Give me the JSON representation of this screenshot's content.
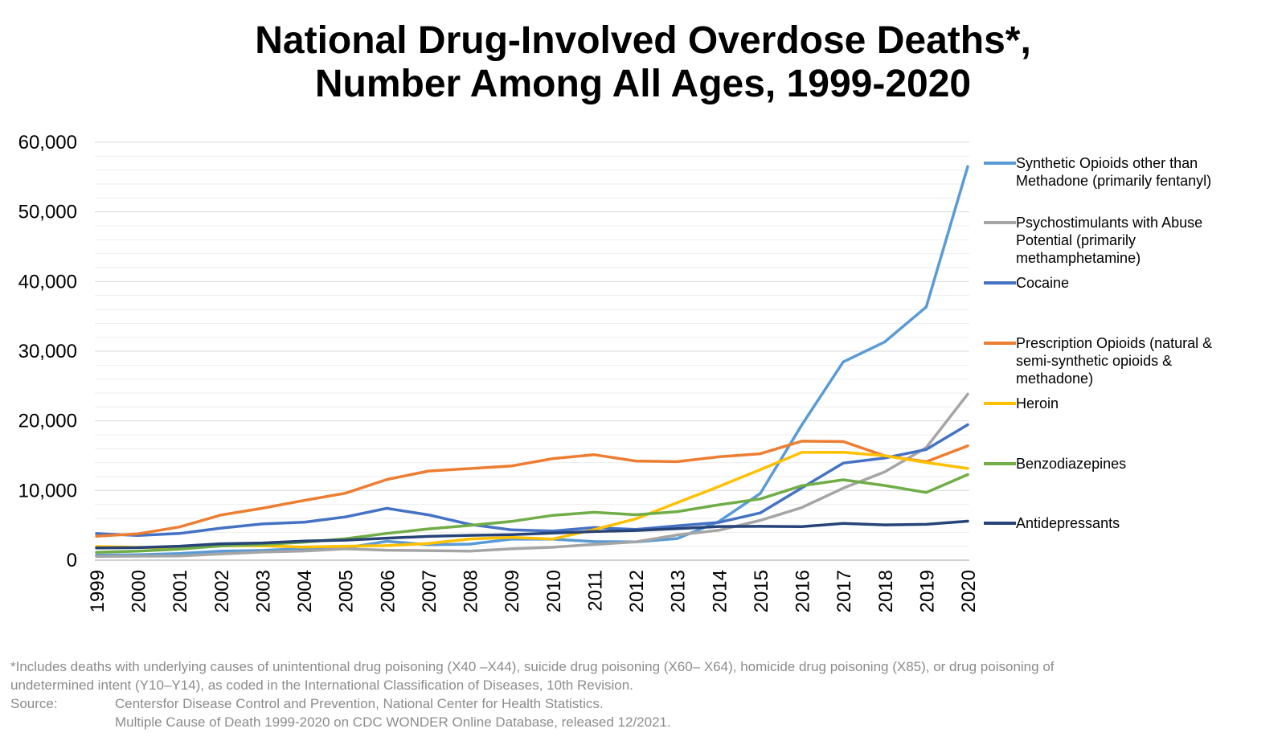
{
  "title": {
    "line1": "National Drug-Involved Overdose Deaths*,",
    "line2": "Number Among All Ages, 1999-2020"
  },
  "chart_data": {
    "type": "line",
    "x": [
      "1999",
      "2000",
      "2001",
      "2002",
      "2003",
      "2004",
      "2005",
      "2006",
      "2007",
      "2008",
      "2009",
      "2010",
      "2011",
      "2012",
      "2013",
      "2014",
      "2015",
      "2016",
      "2017",
      "2018",
      "2019",
      "2020"
    ],
    "ylim": [
      0,
      60000
    ],
    "yticks": [
      0,
      10000,
      20000,
      30000,
      40000,
      50000,
      60000
    ],
    "ytick_labels": [
      "0",
      "10,000",
      "20,000",
      "30,000",
      "40,000",
      "50,000",
      "60,000"
    ],
    "grid": true,
    "legend_position": "right",
    "series": [
      {
        "name": "Synthetic Opioids other than Methadone (primarily fentanyl)",
        "color": "#5b9bd5",
        "values": [
          730,
          782,
          957,
          1295,
          1400,
          1664,
          1742,
          2707,
          2213,
          2306,
          3007,
          3007,
          2666,
          2628,
          3105,
          5544,
          9580,
          19413,
          28466,
          31335,
          36359,
          56516
        ]
      },
      {
        "name": "Psychostimulants with Abuse Potential (primarily methamphetamine)",
        "color": "#a5a5a5",
        "values": [
          547,
          578,
          606,
          892,
          1171,
          1320,
          1632,
          1426,
          1378,
          1302,
          1632,
          1854,
          2266,
          2635,
          3627,
          4298,
          5716,
          7542,
          10333,
          12676,
          16167,
          23837
        ]
      },
      {
        "name": "Cocaine",
        "color": "#4472c4",
        "values": [
          3822,
          3544,
          3833,
          4599,
          5199,
          5443,
          6208,
          7448,
          6512,
          5129,
          4350,
          4183,
          4681,
          4404,
          4944,
          5415,
          6784,
          10375,
          13942,
          14666,
          15883,
          19447
        ]
      },
      {
        "name": "Prescription Opioids (natural & semi-synthetic opioids & methadone)",
        "color": "#ed7d31",
        "values": [
          3442,
          3785,
          4770,
          6485,
          7456,
          8577,
          9612,
          11589,
          12796,
          13149,
          13523,
          14583,
          15140,
          14240,
          14145,
          14838,
          15281,
          17087,
          17029,
          14975,
          14139,
          16416
        ]
      },
      {
        "name": "Heroin",
        "color": "#ffc000",
        "values": [
          1960,
          1842,
          1779,
          2089,
          2080,
          1878,
          2009,
          2088,
          2399,
          3041,
          3278,
          3036,
          4397,
          5925,
          8257,
          10574,
          12989,
          15469,
          15482,
          14996,
          14019,
          13165
        ]
      },
      {
        "name": "Benzodiazepines",
        "color": "#70ad47",
        "values": [
          1135,
          1298,
          1594,
          2056,
          2248,
          2585,
          3069,
          3846,
          4490,
          4982,
          5560,
          6434,
          6872,
          6524,
          6973,
          7945,
          8791,
          10684,
          11537,
          10724,
          9711,
          12290
        ]
      },
      {
        "name": "Antidepressants",
        "color": "#264478",
        "values": [
          1749,
          1799,
          2005,
          2358,
          2469,
          2749,
          2876,
          3160,
          3420,
          3566,
          3656,
          3889,
          4110,
          4252,
          4525,
          4840,
          4852,
          4813,
          5269,
          5064,
          5141,
          5597
        ]
      }
    ]
  },
  "footnote": {
    "line1": "*Includes deaths with underlying causes of unintentional drug poisoning (X40 –X44), suicide drug poisoning (X60– X64), homicide drug poisoning (X85), or drug poisoning of",
    "line2": "undetermined intent (Y10–Y14), as coded in the International Classification of Diseases, 10th Revision.",
    "source_label": "Source:",
    "source_line1": "Centersfor Disease Control and Prevention, National Center for Health Statistics.",
    "source_line2": "Multiple Cause of Death 1999-2020 on CDC WONDER Online Database, released 12/2021."
  }
}
